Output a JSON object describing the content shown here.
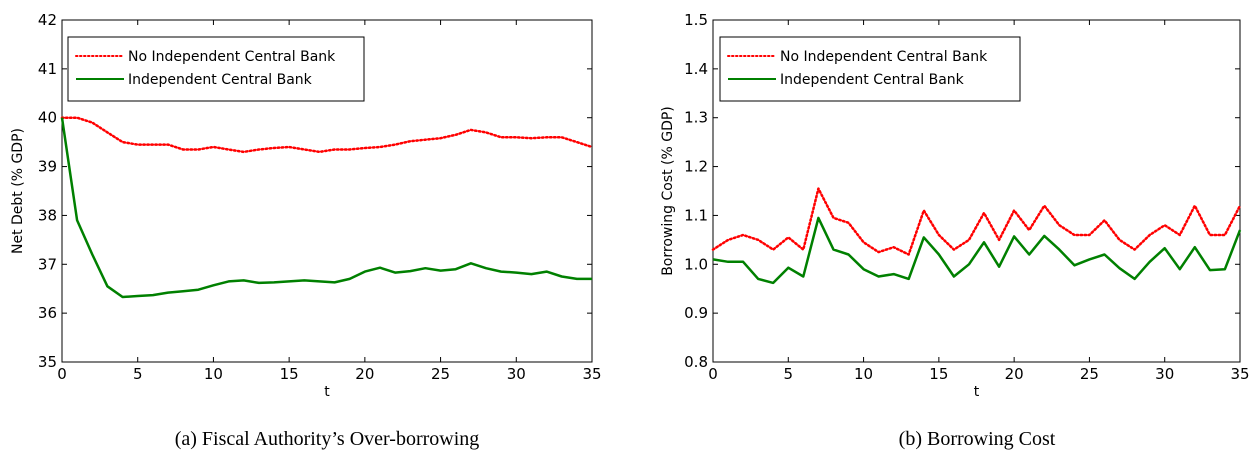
{
  "chart_data": [
    {
      "type": "line",
      "caption": "(a) Fiscal Authority’s Over-borrowing",
      "xlabel": "t",
      "ylabel": "Net Debt (% GDP)",
      "xlim": [
        0,
        35
      ],
      "ylim": [
        35,
        42
      ],
      "xticks": [
        0,
        5,
        10,
        15,
        20,
        25,
        30,
        35
      ],
      "yticks": [
        35,
        36,
        37,
        38,
        39,
        40,
        41,
        42
      ],
      "grid": false,
      "legend_position": "top-left",
      "x": [
        0,
        1,
        2,
        3,
        4,
        5,
        6,
        7,
        8,
        9,
        10,
        11,
        12,
        13,
        14,
        15,
        16,
        17,
        18,
        19,
        20,
        21,
        22,
        23,
        24,
        25,
        26,
        27,
        28,
        29,
        30,
        31,
        32,
        33,
        34,
        35
      ],
      "series": [
        {
          "name": "No Independent Central Bank",
          "color": "#ff0000",
          "style": "dotted",
          "values": [
            40.0,
            40.0,
            39.9,
            39.7,
            39.5,
            39.45,
            39.45,
            39.45,
            39.35,
            39.35,
            39.4,
            39.35,
            39.3,
            39.35,
            39.38,
            39.4,
            39.35,
            39.3,
            39.35,
            39.35,
            39.38,
            39.4,
            39.45,
            39.52,
            39.55,
            39.58,
            39.65,
            39.75,
            39.7,
            39.6,
            39.6,
            39.58,
            39.6,
            39.6,
            39.5,
            39.4
          ]
        },
        {
          "name": "Independent Central Bank",
          "color": "#008000",
          "style": "solid",
          "values": [
            40.0,
            37.9,
            37.2,
            36.55,
            36.33,
            36.35,
            36.37,
            36.42,
            36.45,
            36.48,
            36.57,
            36.65,
            36.67,
            36.62,
            36.63,
            36.65,
            36.67,
            36.65,
            36.63,
            36.7,
            36.85,
            36.93,
            36.83,
            36.86,
            36.92,
            36.87,
            36.9,
            37.02,
            36.92,
            36.85,
            36.83,
            36.8,
            36.85,
            36.75,
            36.7,
            36.7
          ]
        }
      ]
    },
    {
      "type": "line",
      "caption": "(b) Borrowing Cost",
      "xlabel": "t",
      "ylabel": "Borrowing Cost (% GDP)",
      "xlim": [
        0,
        35
      ],
      "ylim": [
        0.8,
        1.5
      ],
      "xticks": [
        0,
        5,
        10,
        15,
        20,
        25,
        30,
        35
      ],
      "yticks": [
        "0.8",
        "0.9",
        "1.0",
        "1.1",
        "1.2",
        "1.3",
        "1.4",
        "1.5"
      ],
      "grid": false,
      "legend_position": "top-left",
      "x": [
        0,
        1,
        2,
        3,
        4,
        5,
        6,
        7,
        8,
        9,
        10,
        11,
        12,
        13,
        14,
        15,
        16,
        17,
        18,
        19,
        20,
        21,
        22,
        23,
        24,
        25,
        26,
        27,
        28,
        29,
        30,
        31,
        32,
        33,
        34,
        35
      ],
      "series": [
        {
          "name": "No Independent Central Bank",
          "color": "#ff0000",
          "style": "dotted",
          "values": [
            1.03,
            1.05,
            1.06,
            1.05,
            1.03,
            1.055,
            1.03,
            1.155,
            1.095,
            1.085,
            1.045,
            1.025,
            1.035,
            1.02,
            1.11,
            1.06,
            1.03,
            1.05,
            1.105,
            1.05,
            1.11,
            1.07,
            1.12,
            1.08,
            1.06,
            1.06,
            1.09,
            1.05,
            1.03,
            1.06,
            1.08,
            1.06,
            1.12,
            1.06,
            1.06,
            1.12
          ]
        },
        {
          "name": "Independent Central Bank",
          "color": "#008000",
          "style": "solid",
          "values": [
            1.01,
            1.005,
            1.005,
            0.97,
            0.962,
            0.993,
            0.975,
            1.095,
            1.03,
            1.02,
            0.99,
            0.975,
            0.98,
            0.97,
            1.055,
            1.02,
            0.975,
            1.0,
            1.045,
            0.995,
            1.057,
            1.02,
            1.058,
            1.03,
            0.998,
            1.01,
            1.02,
            0.992,
            0.97,
            1.005,
            1.033,
            0.99,
            1.035,
            0.988,
            0.99,
            1.07
          ]
        }
      ]
    }
  ]
}
